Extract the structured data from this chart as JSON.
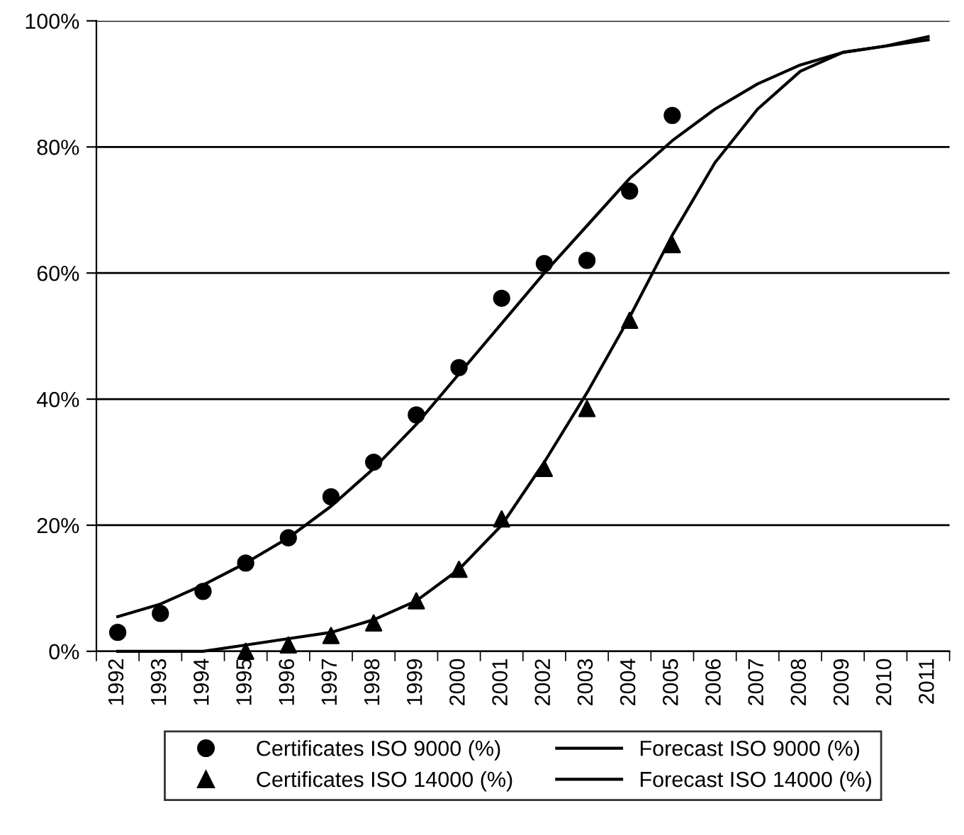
{
  "chart_data": {
    "type": "scatter",
    "categories": [
      "1992",
      "1993",
      "1994",
      "1995",
      "1996",
      "1997",
      "1998",
      "1999",
      "2000",
      "2001",
      "2002",
      "2003",
      "2004",
      "2005",
      "2006",
      "2007",
      "2008",
      "2009",
      "2010",
      "2011"
    ],
    "series": [
      {
        "name": "Certificates ISO 9000 (%)",
        "marker": "circle",
        "color": "#000000",
        "values": [
          3,
          6,
          9.5,
          14,
          18,
          24.5,
          30,
          37.5,
          45,
          56,
          61.5,
          62,
          73,
          85,
          null,
          null,
          null,
          null,
          null,
          null
        ]
      },
      {
        "name": "Forecast ISO 9000 (%)",
        "type": "line",
        "marker": "none",
        "line_style": "solid",
        "color": "#000000",
        "values": [
          5.5,
          7.5,
          10.5,
          14,
          18,
          23,
          29,
          36,
          44,
          52,
          60,
          67.5,
          75,
          81,
          86,
          90,
          93,
          95,
          96,
          97
        ]
      },
      {
        "name": "Certificates ISO 14000 (%)",
        "marker": "triangle",
        "color": "#000000",
        "values": [
          null,
          null,
          null,
          0,
          1,
          2.5,
          4.5,
          8,
          13,
          21,
          29,
          38.5,
          52.5,
          64.5,
          null,
          null,
          null,
          null,
          null,
          null
        ]
      },
      {
        "name": "Forecast ISO 14000 (%)",
        "type": "line",
        "marker": "none",
        "line_style": "solid",
        "color": "#000000",
        "values": [
          0,
          0,
          0,
          1,
          2,
          3,
          5,
          8,
          13,
          20,
          30,
          41,
          53,
          66,
          77.5,
          86,
          92,
          95,
          96,
          97.5
        ]
      }
    ],
    "ylim": [
      0,
      100
    ],
    "yticks": [
      {
        "value": 0,
        "label": "0%"
      },
      {
        "value": 20,
        "label": "20%"
      },
      {
        "value": 40,
        "label": "40%"
      },
      {
        "value": 60,
        "label": "60%"
      },
      {
        "value": 80,
        "label": "80%"
      },
      {
        "value": 100,
        "label": "100%"
      }
    ],
    "grid": "y",
    "legend": "bottom"
  }
}
